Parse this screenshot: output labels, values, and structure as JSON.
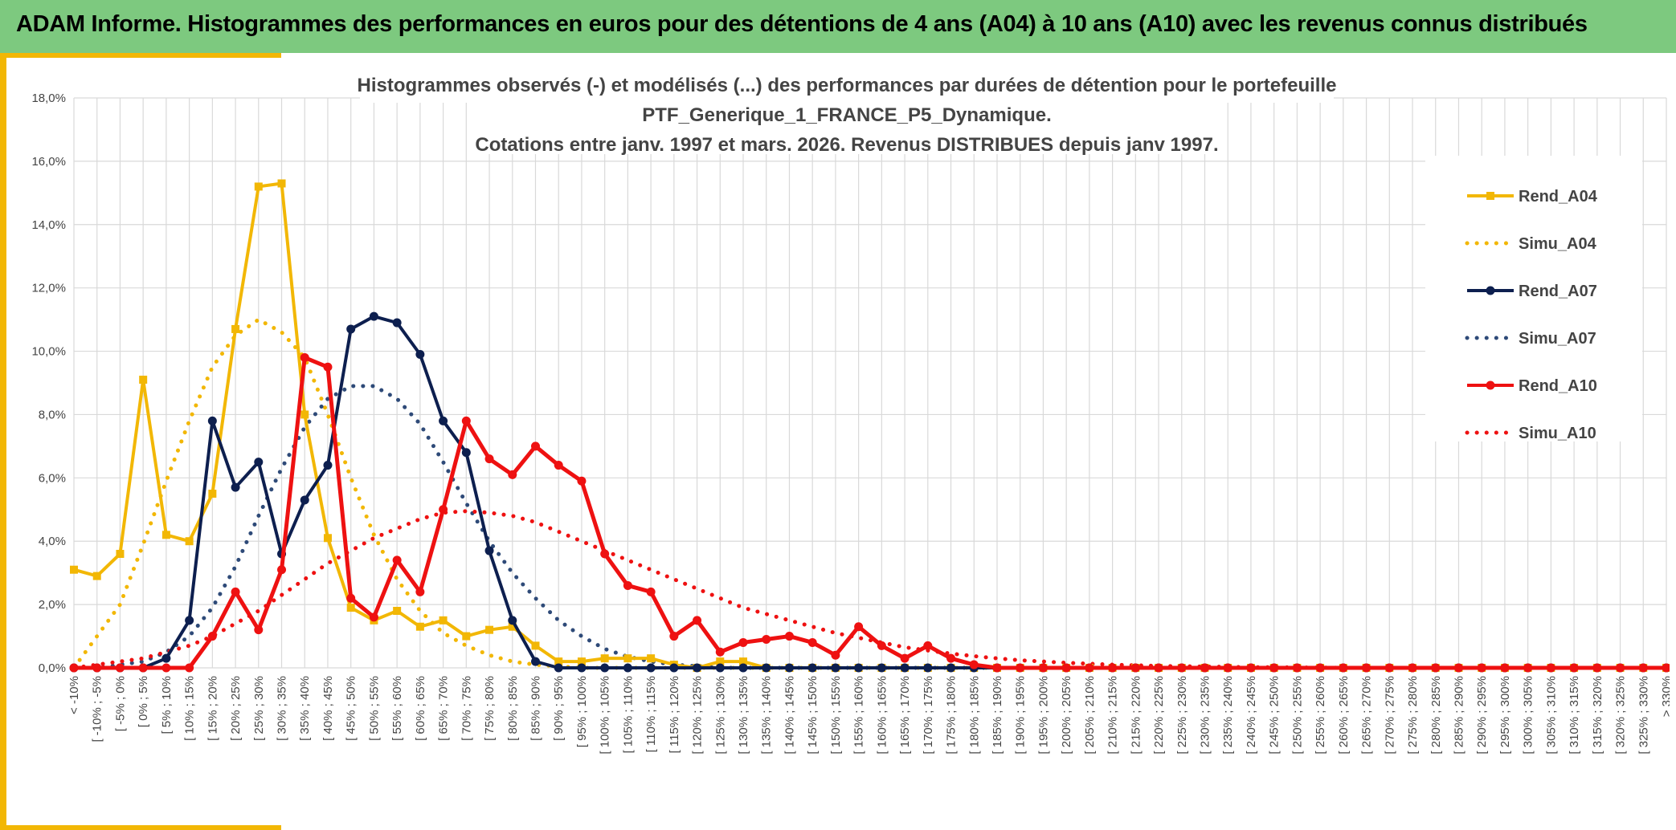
{
  "header": {
    "title": "ADAM Informe. Histogrammes des performances en euros pour des détentions de 4 ans (A04) à 10 ans (A10) avec les revenus connus distribués"
  },
  "colors": {
    "banner": "#7dc97f",
    "accent": "#f2b705",
    "a04": "#f2b705",
    "a07": "#0d1f4f",
    "a07_simu": "#2e4a78",
    "a10": "#ee1111"
  },
  "chart_data": {
    "type": "line",
    "title_lines": [
      "Histogrammes observés (-) et modélisés (...) des performances par durées de détention pour le portefeuille",
      "PTF_Generique_1_FRANCE_P5_Dynamique.",
      "Cotations entre janv. 1997 et mars. 2026. Revenus DISTRIBUES depuis janv 1997."
    ],
    "y_ticks": [
      "0,0%",
      "2,0%",
      "4,0%",
      "6,0%",
      "8,0%",
      "10,0%",
      "12,0%",
      "14,0%",
      "16,0%",
      "18,0%"
    ],
    "ylim": [
      0,
      18
    ],
    "categories": [
      "< -10%",
      "[ -10% ; -5%",
      "[ -5% ; 0%",
      "[ 0% ; 5%",
      "[ 5% ; 10%",
      "[ 10% ; 15%",
      "[ 15% ; 20%",
      "[ 20% ; 25%",
      "[ 25% ; 30%",
      "[ 30% ; 35%",
      "[ 35% ; 40%",
      "[ 40% ; 45%",
      "[ 45% ; 50%",
      "[ 50% ; 55%",
      "[ 55% ; 60%",
      "[ 60% ; 65%",
      "[ 65% ; 70%",
      "[ 70% ; 75%",
      "[ 75% ; 80%",
      "[ 80% ; 85%",
      "[ 85% ; 90%",
      "[ 90% ; 95%",
      "[ 95% ; 100%",
      "[ 100% ; 105%",
      "[ 105% ; 110%",
      "[ 110% ; 115%",
      "[ 115% ; 120%",
      "[ 120% ; 125%",
      "[ 125% ; 130%",
      "[ 130% ; 135%",
      "[ 135% ; 140%",
      "[ 140% ; 145%",
      "[ 145% ; 150%",
      "[ 150% ; 155%",
      "[ 155% ; 160%",
      "[ 160% ; 165%",
      "[ 165% ; 170%",
      "[ 170% ; 175%",
      "[ 175% ; 180%",
      "[ 180% ; 185%",
      "[ 185% ; 190%",
      "[ 190% ; 195%",
      "[ 195% ; 200%",
      "[ 200% ; 205%",
      "[ 205% ; 210%",
      "[ 210% ; 215%",
      "[ 215% ; 220%",
      "[ 220% ; 225%",
      "[ 225% ; 230%",
      "[ 230% ; 235%",
      "[ 235% ; 240%",
      "[ 240% ; 245%",
      "[ 245% ; 250%",
      "[ 250% ; 255%",
      "[ 255% ; 260%",
      "[ 260% ; 265%",
      "[ 265% ; 270%",
      "[ 270% ; 275%",
      "[ 275% ; 280%",
      "[ 280% ; 285%",
      "[ 285% ; 290%",
      "[ 290% ; 295%",
      "[ 295% ; 300%",
      "[ 300% ; 305%",
      "[ 305% ; 310%",
      "[ 310% ; 315%",
      "[ 315% ; 320%",
      "[ 320% ; 325%",
      "[ 325% ; 330%",
      "> 330%"
    ],
    "series": [
      {
        "name": "Rend_A04",
        "style": "solid",
        "marker": "square",
        "color": "#f2b705",
        "values": [
          3.1,
          2.9,
          3.6,
          9.1,
          4.2,
          4.0,
          5.5,
          10.7,
          15.2,
          15.3,
          8.0,
          4.1,
          1.9,
          1.5,
          1.8,
          1.3,
          1.5,
          1.0,
          1.2,
          1.3,
          0.7,
          0.2,
          0.2,
          0.3,
          0.3,
          0.3,
          0.1,
          0.0,
          0.2,
          0.2,
          0.0,
          0.0,
          0.0,
          0.0,
          0.0,
          0.0,
          0.0,
          0.0,
          0.0,
          0.0,
          0.0,
          0.0,
          0.0,
          0.0,
          0.0,
          0.0,
          0.0,
          0.0,
          0.0,
          0.0,
          0.0,
          0.0,
          0.0,
          0.0,
          0.0,
          0.0,
          0.0,
          0.0,
          0.0,
          0.0,
          0.0,
          0.0,
          0.0,
          0.0,
          0.0,
          0.0,
          0.0,
          0.0,
          0.0,
          0.0
        ]
      },
      {
        "name": "Simu_A04",
        "style": "dotted",
        "color": "#f2b705",
        "values": [
          0.0,
          1.0,
          2.0,
          3.9,
          5.9,
          7.8,
          9.5,
          10.5,
          11.0,
          10.6,
          9.8,
          8.0,
          6.0,
          4.2,
          2.8,
          1.8,
          1.1,
          0.7,
          0.4,
          0.2,
          0.1,
          0.05,
          0.0,
          0.0,
          0.0,
          0.0,
          0.0,
          0.0,
          0.0,
          0.0,
          0.0,
          0.0,
          0.0,
          0.0,
          0.0,
          0.0,
          0.0,
          0.0,
          0.0,
          0.0,
          0.0,
          0.0,
          0.0,
          0.0,
          0.0,
          0.0,
          0.0,
          0.0,
          0.0,
          0.0,
          0.0,
          0.0,
          0.0,
          0.0,
          0.0,
          0.0,
          0.0,
          0.0,
          0.0,
          0.0,
          0.0,
          0.0,
          0.0,
          0.0,
          0.0,
          0.0,
          0.0,
          0.0,
          0.0,
          0.0
        ]
      },
      {
        "name": "Rend_A07",
        "style": "solid",
        "marker": "circle",
        "color": "#0d1f4f",
        "values": [
          0.0,
          0.0,
          0.0,
          0.0,
          0.3,
          1.5,
          7.8,
          5.7,
          6.5,
          3.6,
          5.3,
          6.4,
          10.7,
          11.1,
          10.9,
          9.9,
          7.8,
          6.8,
          3.7,
          1.5,
          0.2,
          0.0,
          0.0,
          0.0,
          0.0,
          0.0,
          0.0,
          0.0,
          0.0,
          0.0,
          0.0,
          0.0,
          0.0,
          0.0,
          0.0,
          0.0,
          0.0,
          0.0,
          0.0,
          0.0,
          0.0,
          0.0,
          0.0,
          0.0,
          0.0,
          0.0,
          0.0,
          0.0,
          0.0,
          0.0,
          0.0,
          0.0,
          0.0,
          0.0,
          0.0,
          0.0,
          0.0,
          0.0,
          0.0,
          0.0,
          0.0,
          0.0,
          0.0,
          0.0,
          0.0,
          0.0,
          0.0,
          0.0,
          0.0,
          0.0
        ]
      },
      {
        "name": "Simu_A07",
        "style": "dotted",
        "color": "#2e4a78",
        "values": [
          0.0,
          0.0,
          0.1,
          0.2,
          0.5,
          1.0,
          1.9,
          3.2,
          4.8,
          6.3,
          7.6,
          8.5,
          8.9,
          8.9,
          8.5,
          7.7,
          6.5,
          5.2,
          4.0,
          3.0,
          2.2,
          1.5,
          1.0,
          0.6,
          0.35,
          0.2,
          0.1,
          0.05,
          0.0,
          0.0,
          0.0,
          0.0,
          0.0,
          0.0,
          0.0,
          0.0,
          0.0,
          0.0,
          0.0,
          0.0,
          0.0,
          0.0,
          0.0,
          0.0,
          0.0,
          0.0,
          0.0,
          0.0,
          0.0,
          0.0,
          0.0,
          0.0,
          0.0,
          0.0,
          0.0,
          0.0,
          0.0,
          0.0,
          0.0,
          0.0,
          0.0,
          0.0,
          0.0,
          0.0,
          0.0,
          0.0,
          0.0,
          0.0,
          0.0,
          0.0
        ]
      },
      {
        "name": "Rend_A10",
        "style": "solid",
        "marker": "circle",
        "color": "#ee1111",
        "values": [
          0.0,
          0.0,
          0.0,
          0.0,
          0.0,
          0.0,
          1.0,
          2.4,
          1.2,
          3.1,
          9.8,
          9.5,
          2.2,
          1.6,
          3.4,
          2.4,
          5.0,
          7.8,
          6.6,
          6.1,
          7.0,
          6.4,
          5.9,
          3.6,
          2.6,
          2.4,
          1.0,
          1.5,
          0.5,
          0.8,
          0.9,
          1.0,
          0.8,
          0.4,
          1.3,
          0.7,
          0.3,
          0.7,
          0.3,
          0.1,
          0.0,
          0.0,
          0.0,
          0.0,
          0.0,
          0.0,
          0.0,
          0.0,
          0.0,
          0.0,
          0.0,
          0.0,
          0.0,
          0.0,
          0.0,
          0.0,
          0.0,
          0.0,
          0.0,
          0.0,
          0.0,
          0.0,
          0.0,
          0.0,
          0.0,
          0.0,
          0.0,
          0.0,
          0.0,
          0.0
        ]
      },
      {
        "name": "Simu_A10",
        "style": "dotted",
        "color": "#ee1111",
        "values": [
          0.0,
          0.1,
          0.2,
          0.3,
          0.5,
          0.7,
          1.0,
          1.4,
          1.8,
          2.3,
          2.8,
          3.3,
          3.7,
          4.1,
          4.4,
          4.7,
          4.9,
          4.95,
          4.9,
          4.8,
          4.6,
          4.3,
          4.0,
          3.7,
          3.4,
          3.1,
          2.8,
          2.5,
          2.2,
          1.9,
          1.7,
          1.5,
          1.3,
          1.1,
          0.95,
          0.8,
          0.65,
          0.55,
          0.45,
          0.37,
          0.3,
          0.24,
          0.2,
          0.16,
          0.13,
          0.1,
          0.08,
          0.06,
          0.05,
          0.04,
          0.03,
          0.02,
          0.02,
          0.01,
          0.01,
          0.0,
          0.0,
          0.0,
          0.0,
          0.0,
          0.0,
          0.0,
          0.0,
          0.0,
          0.0,
          0.0,
          0.0,
          0.0,
          0.0,
          0.0
        ]
      }
    ],
    "legend_position": "right"
  }
}
